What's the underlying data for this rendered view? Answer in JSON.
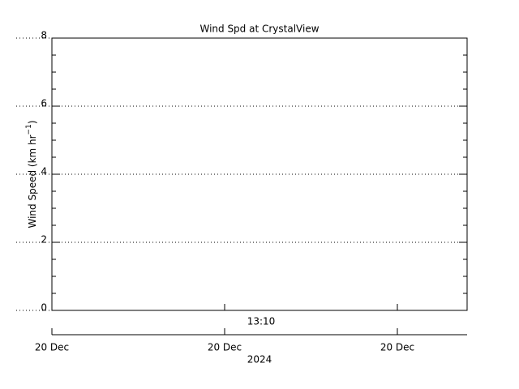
{
  "chart_data": {
    "type": "line",
    "title": "Wind Spd at CrystalView",
    "y_label": [
      "Wind Speed (km hr",
      "−1",
      ")"
    ],
    "x_time_label": "13:10",
    "x_date_labels": [
      "20 Dec",
      "20 Dec",
      "20 Dec"
    ],
    "x_year_label": "2024",
    "values": [],
    "color": "#000000",
    "ylim": [
      0,
      8
    ],
    "yticks": [
      0,
      2,
      4,
      6,
      8
    ],
    "grid": true
  }
}
